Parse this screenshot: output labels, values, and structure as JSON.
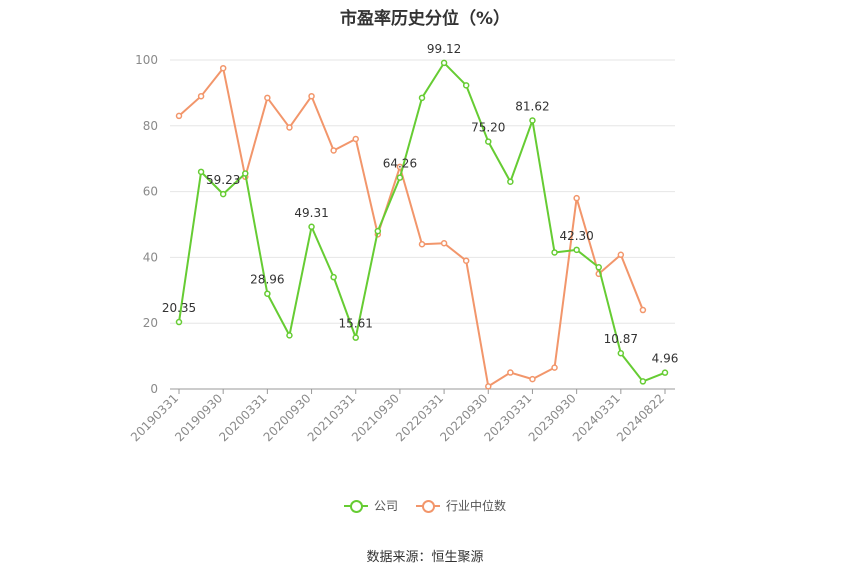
{
  "title": "市盈率历史分位（%）",
  "source": "数据来源：恒生聚源",
  "colors": {
    "company": "#66cc33",
    "industry": "#f2966b",
    "axis": "#999999",
    "grid": "#e6e6e6"
  },
  "chart_data": {
    "type": "line",
    "title": "市盈率历史分位（%）",
    "ylim": [
      0,
      100
    ],
    "y_ticks": [
      "0",
      "20",
      "40",
      "60",
      "80",
      "100"
    ],
    "x_tick_labels": [
      "20190331",
      "20190930",
      "20200331",
      "20200930",
      "20210331",
      "20210930",
      "20220331",
      "20220930",
      "20230331",
      "20230930",
      "20240331",
      "20240822"
    ],
    "x": [
      "20190331",
      "20190630",
      "20190930",
      "20191231",
      "20200331",
      "20200630",
      "20200930",
      "20201231",
      "20210331",
      "20210630",
      "20210930",
      "20211231",
      "20220331",
      "20220630",
      "20220930",
      "20221231",
      "20230331",
      "20230630",
      "20230930",
      "20231231",
      "20240331",
      "20240630",
      "20240822"
    ],
    "grid": true,
    "legend_position": "bottom",
    "series": [
      {
        "name": "公司",
        "color": "#66cc33",
        "values": [
          20.35,
          66.0,
          59.23,
          65.5,
          28.96,
          16.3,
          49.31,
          34.0,
          15.61,
          48.0,
          64.26,
          88.5,
          99.12,
          92.3,
          75.2,
          63.0,
          81.62,
          41.5,
          42.3,
          37.0,
          10.87,
          2.3,
          4.96
        ],
        "labels": [
          "20.35",
          "",
          "59.23",
          "",
          "28.96",
          "",
          "49.31",
          "",
          "15.61",
          "",
          "64.26",
          "",
          "99.12",
          "",
          "75.20",
          "",
          "81.62",
          "",
          "42.30",
          "",
          "10.87",
          "",
          "4.96"
        ]
      },
      {
        "name": "行业中位数",
        "color": "#f2966b",
        "values": [
          83.0,
          89.0,
          97.5,
          64.5,
          88.5,
          79.5,
          89.0,
          72.5,
          76.0,
          47.0,
          67.5,
          44.0,
          44.3,
          39.0,
          0.8,
          5.0,
          3.0,
          6.5,
          58.0,
          35.0,
          40.8,
          24.0,
          null
        ],
        "labels": []
      }
    ]
  }
}
